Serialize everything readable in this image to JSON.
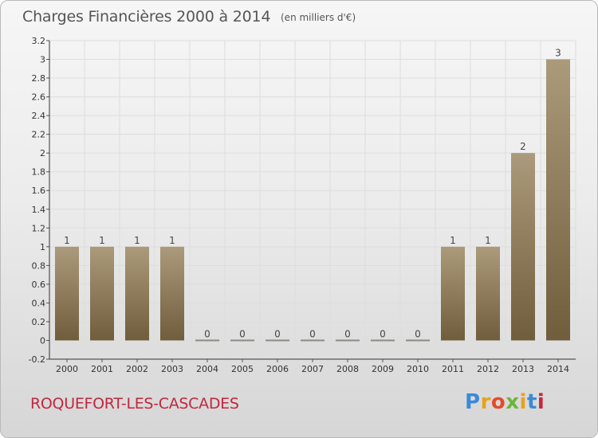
{
  "header": {
    "title": "Charges Financières 2000 à 2014",
    "subtitle": "(en milliers d'€)"
  },
  "footer": {
    "commune": "ROQUEFORT-LES-CASCADES",
    "logo_text": "Proxiti"
  },
  "colors": {
    "bar_top": "#ab9a7b",
    "bar_bottom": "#705d3c",
    "grid": "#dddddd",
    "axis_text": "#333333",
    "commune": "#c2273e"
  },
  "chart_data": {
    "type": "bar",
    "title": "Charges Financières 2000 à 2014",
    "subtitle": "(en milliers d'€)",
    "categories": [
      "2000",
      "2001",
      "2002",
      "2003",
      "2004",
      "2005",
      "2006",
      "2007",
      "2008",
      "2009",
      "2010",
      "2011",
      "2012",
      "2013",
      "2014"
    ],
    "values": [
      1,
      1,
      1,
      1,
      0,
      0,
      0,
      0,
      0,
      0,
      0,
      1,
      1,
      2,
      3
    ],
    "data_labels": [
      "1",
      "1",
      "1",
      "1",
      "0",
      "0",
      "0",
      "0",
      "0",
      "0",
      "0",
      "1",
      "1",
      "2",
      "3"
    ],
    "ylim": [
      -0.2,
      3.2
    ],
    "yticks": [
      -0.2,
      0,
      0.2,
      0.4,
      0.6,
      0.8,
      1,
      1.2,
      1.4,
      1.6,
      1.8,
      2,
      2.2,
      2.4,
      2.6,
      2.8,
      3,
      3.2
    ],
    "ytick_labels": [
      "-0.2",
      "0",
      "0.2",
      "0.4",
      "0.6",
      "0.8",
      "1",
      "1.2",
      "1.4",
      "1.6",
      "1.8",
      "2",
      "2.2",
      "2.4",
      "2.6",
      "2.8",
      "3",
      "3.2"
    ],
    "grid": true,
    "legend": "none"
  }
}
